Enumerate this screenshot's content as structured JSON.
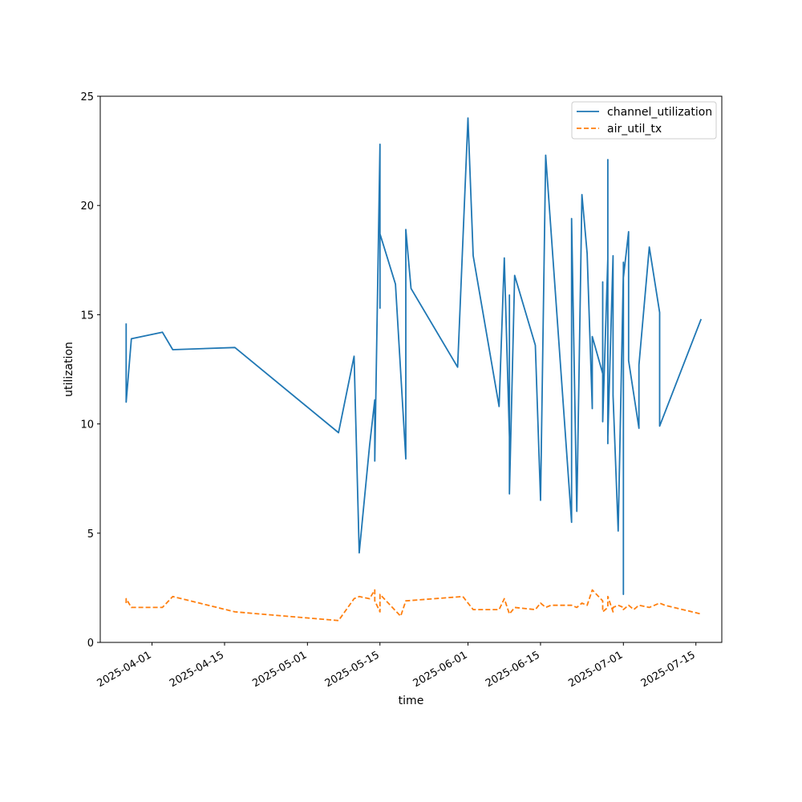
{
  "chart_data": {
    "type": "line",
    "xlabel": "time",
    "ylabel": "utilization",
    "x_axis_type": "date",
    "xlim": [
      "2025-03-22",
      "2025-07-20"
    ],
    "ylim": [
      0,
      25
    ],
    "yticks": [
      0,
      5,
      10,
      15,
      20,
      25
    ],
    "xticks": [
      "2025-04-01",
      "2025-04-15",
      "2025-05-01",
      "2025-05-15",
      "2025-06-01",
      "2025-06-15",
      "2025-07-01",
      "2025-07-15"
    ],
    "grid": false,
    "legend_position": "top-right",
    "series": [
      {
        "name": "channel_utilization",
        "color": "#1f77b4",
        "style": "solid",
        "points": [
          [
            "2025-03-27",
            14.6
          ],
          [
            "2025-03-27",
            11.0
          ],
          [
            "2025-03-28",
            13.9
          ],
          [
            "2025-04-03",
            14.2
          ],
          [
            "2025-04-05",
            13.4
          ],
          [
            "2025-04-17",
            13.5
          ],
          [
            "2025-05-07",
            9.6
          ],
          [
            "2025-05-10",
            13.1
          ],
          [
            "2025-05-11",
            4.1
          ],
          [
            "2025-05-13",
            9.0
          ],
          [
            "2025-05-14",
            11.1
          ],
          [
            "2025-05-14",
            8.3
          ],
          [
            "2025-05-15",
            22.8
          ],
          [
            "2025-05-15",
            15.3
          ],
          [
            "2025-05-15",
            18.7
          ],
          [
            "2025-05-18",
            16.4
          ],
          [
            "2025-05-20",
            8.4
          ],
          [
            "2025-05-20",
            18.9
          ],
          [
            "2025-05-21",
            16.2
          ],
          [
            "2025-05-30",
            12.6
          ],
          [
            "2025-06-01",
            24.0
          ],
          [
            "2025-06-02",
            17.7
          ],
          [
            "2025-06-07",
            10.8
          ],
          [
            "2025-06-08",
            17.6
          ],
          [
            "2025-06-09",
            9.4
          ],
          [
            "2025-06-09",
            15.9
          ],
          [
            "2025-06-09",
            6.8
          ],
          [
            "2025-06-10",
            16.8
          ],
          [
            "2025-06-14",
            13.6
          ],
          [
            "2025-06-15",
            6.5
          ],
          [
            "2025-06-16",
            22.3
          ],
          [
            "2025-06-21",
            5.5
          ],
          [
            "2025-06-21",
            19.4
          ],
          [
            "2025-06-22",
            6.0
          ],
          [
            "2025-06-23",
            20.5
          ],
          [
            "2025-06-24",
            17.8
          ],
          [
            "2025-06-25",
            10.7
          ],
          [
            "2025-06-25",
            14.0
          ],
          [
            "2025-06-27",
            12.3
          ],
          [
            "2025-06-27",
            16.5
          ],
          [
            "2025-06-27",
            10.1
          ],
          [
            "2025-06-28",
            17.6
          ],
          [
            "2025-06-28",
            9.1
          ],
          [
            "2025-06-28",
            22.1
          ],
          [
            "2025-06-28",
            9.4
          ],
          [
            "2025-06-29",
            17.7
          ],
          [
            "2025-06-29",
            11.3
          ],
          [
            "2025-06-30",
            5.1
          ],
          [
            "2025-07-01",
            17.0
          ],
          [
            "2025-07-01",
            2.2
          ],
          [
            "2025-07-01",
            8.8
          ],
          [
            "2025-07-01",
            17.4
          ],
          [
            "2025-07-01",
            16.7
          ],
          [
            "2025-07-02",
            18.8
          ],
          [
            "2025-07-02",
            12.9
          ],
          [
            "2025-07-04",
            9.8
          ],
          [
            "2025-07-04",
            12.7
          ],
          [
            "2025-07-06",
            18.1
          ],
          [
            "2025-07-08",
            15.1
          ],
          [
            "2025-07-08",
            9.9
          ],
          [
            "2025-07-16",
            14.8
          ]
        ]
      },
      {
        "name": "air_util_tx",
        "color": "#ff7f0e",
        "style": "dashed",
        "points": [
          [
            "2025-03-27",
            1.8
          ],
          [
            "2025-03-27",
            2.0
          ],
          [
            "2025-03-28",
            1.6
          ],
          [
            "2025-04-03",
            1.6
          ],
          [
            "2025-04-05",
            2.1
          ],
          [
            "2025-04-17",
            1.4
          ],
          [
            "2025-05-07",
            1.0
          ],
          [
            "2025-05-10",
            2.0
          ],
          [
            "2025-05-11",
            2.1
          ],
          [
            "2025-05-13",
            2.0
          ],
          [
            "2025-05-14",
            2.4
          ],
          [
            "2025-05-14",
            1.9
          ],
          [
            "2025-05-15",
            1.4
          ],
          [
            "2025-05-15",
            2.2
          ],
          [
            "2025-05-19",
            1.2
          ],
          [
            "2025-05-20",
            1.9
          ],
          [
            "2025-05-31",
            2.1
          ],
          [
            "2025-06-02",
            1.5
          ],
          [
            "2025-06-07",
            1.5
          ],
          [
            "2025-06-08",
            2.0
          ],
          [
            "2025-06-09",
            1.3
          ],
          [
            "2025-06-10",
            1.6
          ],
          [
            "2025-06-14",
            1.5
          ],
          [
            "2025-06-15",
            1.8
          ],
          [
            "2025-06-16",
            1.6
          ],
          [
            "2025-06-17",
            1.7
          ],
          [
            "2025-06-21",
            1.7
          ],
          [
            "2025-06-22",
            1.6
          ],
          [
            "2025-06-23",
            1.8
          ],
          [
            "2025-06-24",
            1.7
          ],
          [
            "2025-06-25",
            2.4
          ],
          [
            "2025-06-27",
            1.9
          ],
          [
            "2025-06-27",
            1.4
          ],
          [
            "2025-06-28",
            1.6
          ],
          [
            "2025-06-28",
            2.1
          ],
          [
            "2025-06-29",
            1.4
          ],
          [
            "2025-06-29",
            1.6
          ],
          [
            "2025-06-30",
            1.7
          ],
          [
            "2025-07-01",
            1.6
          ],
          [
            "2025-07-01",
            1.5
          ],
          [
            "2025-07-02",
            1.7
          ],
          [
            "2025-07-03",
            1.5
          ],
          [
            "2025-07-04",
            1.7
          ],
          [
            "2025-07-06",
            1.6
          ],
          [
            "2025-07-08",
            1.8
          ],
          [
            "2025-07-09",
            1.7
          ],
          [
            "2025-07-16",
            1.3
          ]
        ]
      }
    ]
  }
}
